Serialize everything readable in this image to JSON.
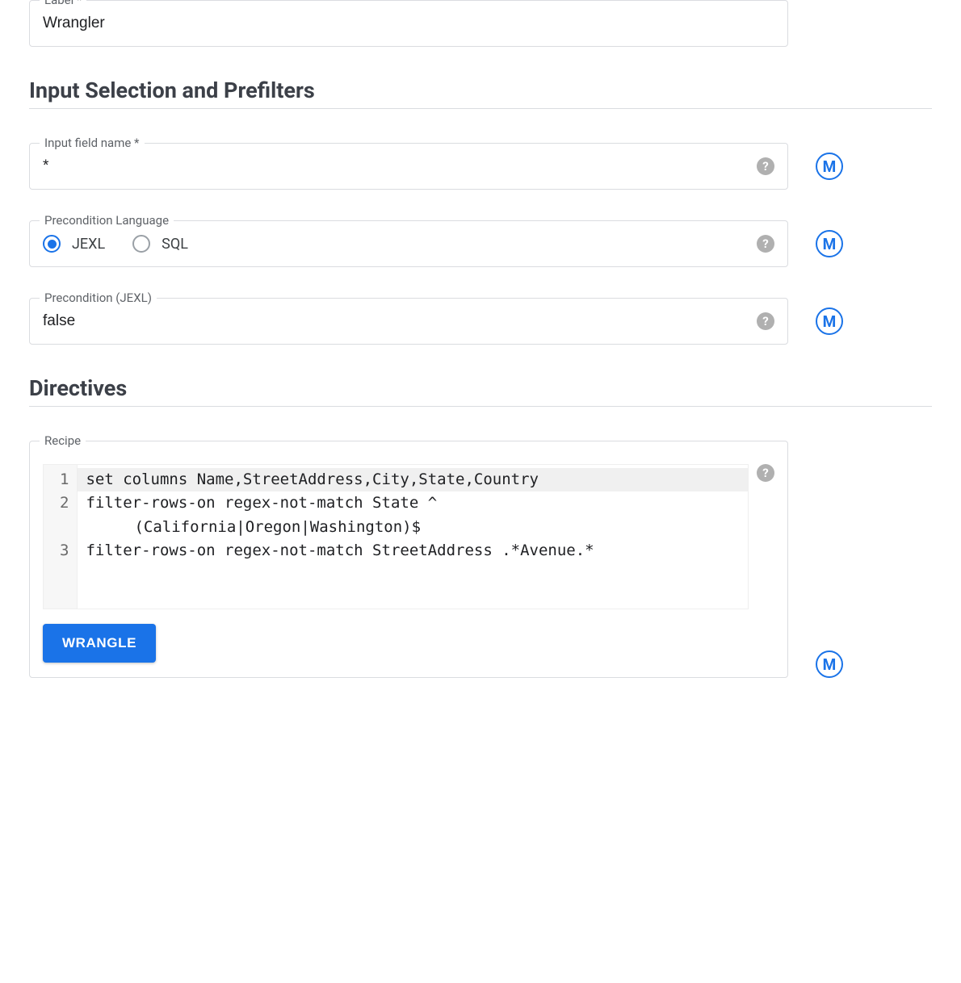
{
  "labelField": {
    "legend": "Label *",
    "value": "Wrangler"
  },
  "section1": {
    "title": "Input Selection and Prefilters"
  },
  "inputFieldName": {
    "legend": "Input field name *",
    "value": "*"
  },
  "preconditionLanguage": {
    "legend": "Precondition Language",
    "options": [
      {
        "label": "JEXL",
        "selected": true
      },
      {
        "label": "SQL",
        "selected": false
      }
    ]
  },
  "preconditionJexl": {
    "legend": "Precondition (JEXL)",
    "value": "false"
  },
  "section2": {
    "title": "Directives"
  },
  "recipe": {
    "legend": "Recipe",
    "lines": [
      {
        "num": "1",
        "text": "set columns Name,StreetAddress,City,State,Country",
        "active": true
      },
      {
        "num": "2",
        "text": "filter-rows-on regex-not-match State ^"
      },
      {
        "num": "",
        "text": "(California|Oregon|Washington)$",
        "wrap": true
      },
      {
        "num": "3",
        "text": "filter-rows-on regex-not-match StreetAddress .*Avenue.*"
      }
    ],
    "button": "WRANGLE"
  },
  "icons": {
    "help": "?",
    "m": "M"
  }
}
